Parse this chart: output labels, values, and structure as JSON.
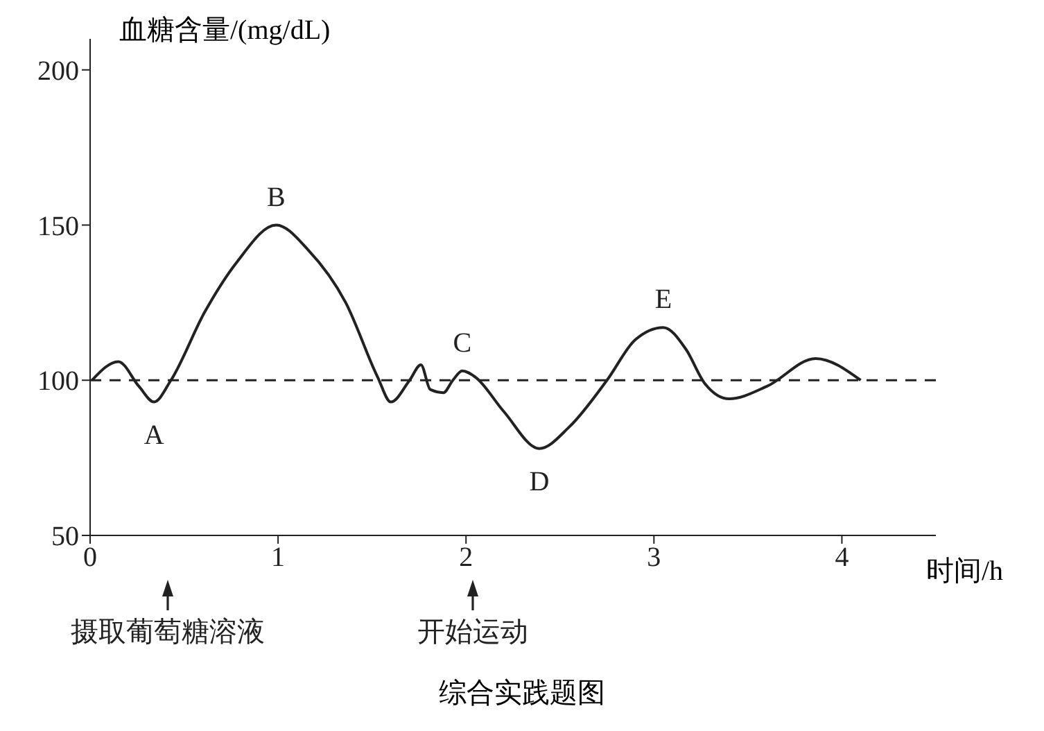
{
  "chart_data": {
    "type": "line",
    "xlabel": "时间/h",
    "ylabel": "血糖含量/(mg/dL)",
    "x": [
      0.01,
      0.15,
      0.26,
      0.34,
      0.43,
      0.61,
      0.78,
      0.99,
      1.16,
      1.36,
      1.53,
      1.6,
      1.7,
      1.76,
      1.81,
      1.88,
      1.93,
      1.98,
      2.05,
      2.2,
      2.39,
      2.55,
      2.75,
      2.9,
      3.05,
      3.17,
      3.27,
      3.4,
      3.6,
      3.86,
      4.1
    ],
    "series": [
      {
        "color": "#222222",
        "values": [
          100,
          106,
          98,
          93,
          100,
          122,
          138,
          150,
          142,
          125,
          101,
          93,
          100,
          105,
          97,
          96,
          100,
          103,
          101,
          90,
          78,
          85,
          100,
          113,
          117,
          110,
          99,
          94,
          98,
          107,
          100
        ]
      }
    ],
    "xlim": [
      0,
      4.5
    ],
    "ylim": [
      50,
      210
    ],
    "xticks": [
      0,
      1,
      2,
      3,
      4
    ],
    "yticks": [
      50,
      100,
      150,
      200
    ],
    "grid": false,
    "legend": false,
    "marker": "none",
    "line_style": "solid",
    "ref_lines": [
      {
        "axis": "y",
        "value": 100,
        "line_style": "dashed",
        "color": "#222222"
      }
    ],
    "annotations": [
      {
        "text": "A",
        "x": 0.34,
        "y": 93
      },
      {
        "text": "B",
        "x": 0.99,
        "y": 150
      },
      {
        "text": "C",
        "x": 1.98,
        "y": 103
      },
      {
        "text": "D",
        "x": 2.39,
        "y": 78
      },
      {
        "text": "E",
        "x": 3.05,
        "y": 117
      },
      "摄取葡萄糖溶液",
      "开始运动",
      "综合实践题图"
    ]
  }
}
